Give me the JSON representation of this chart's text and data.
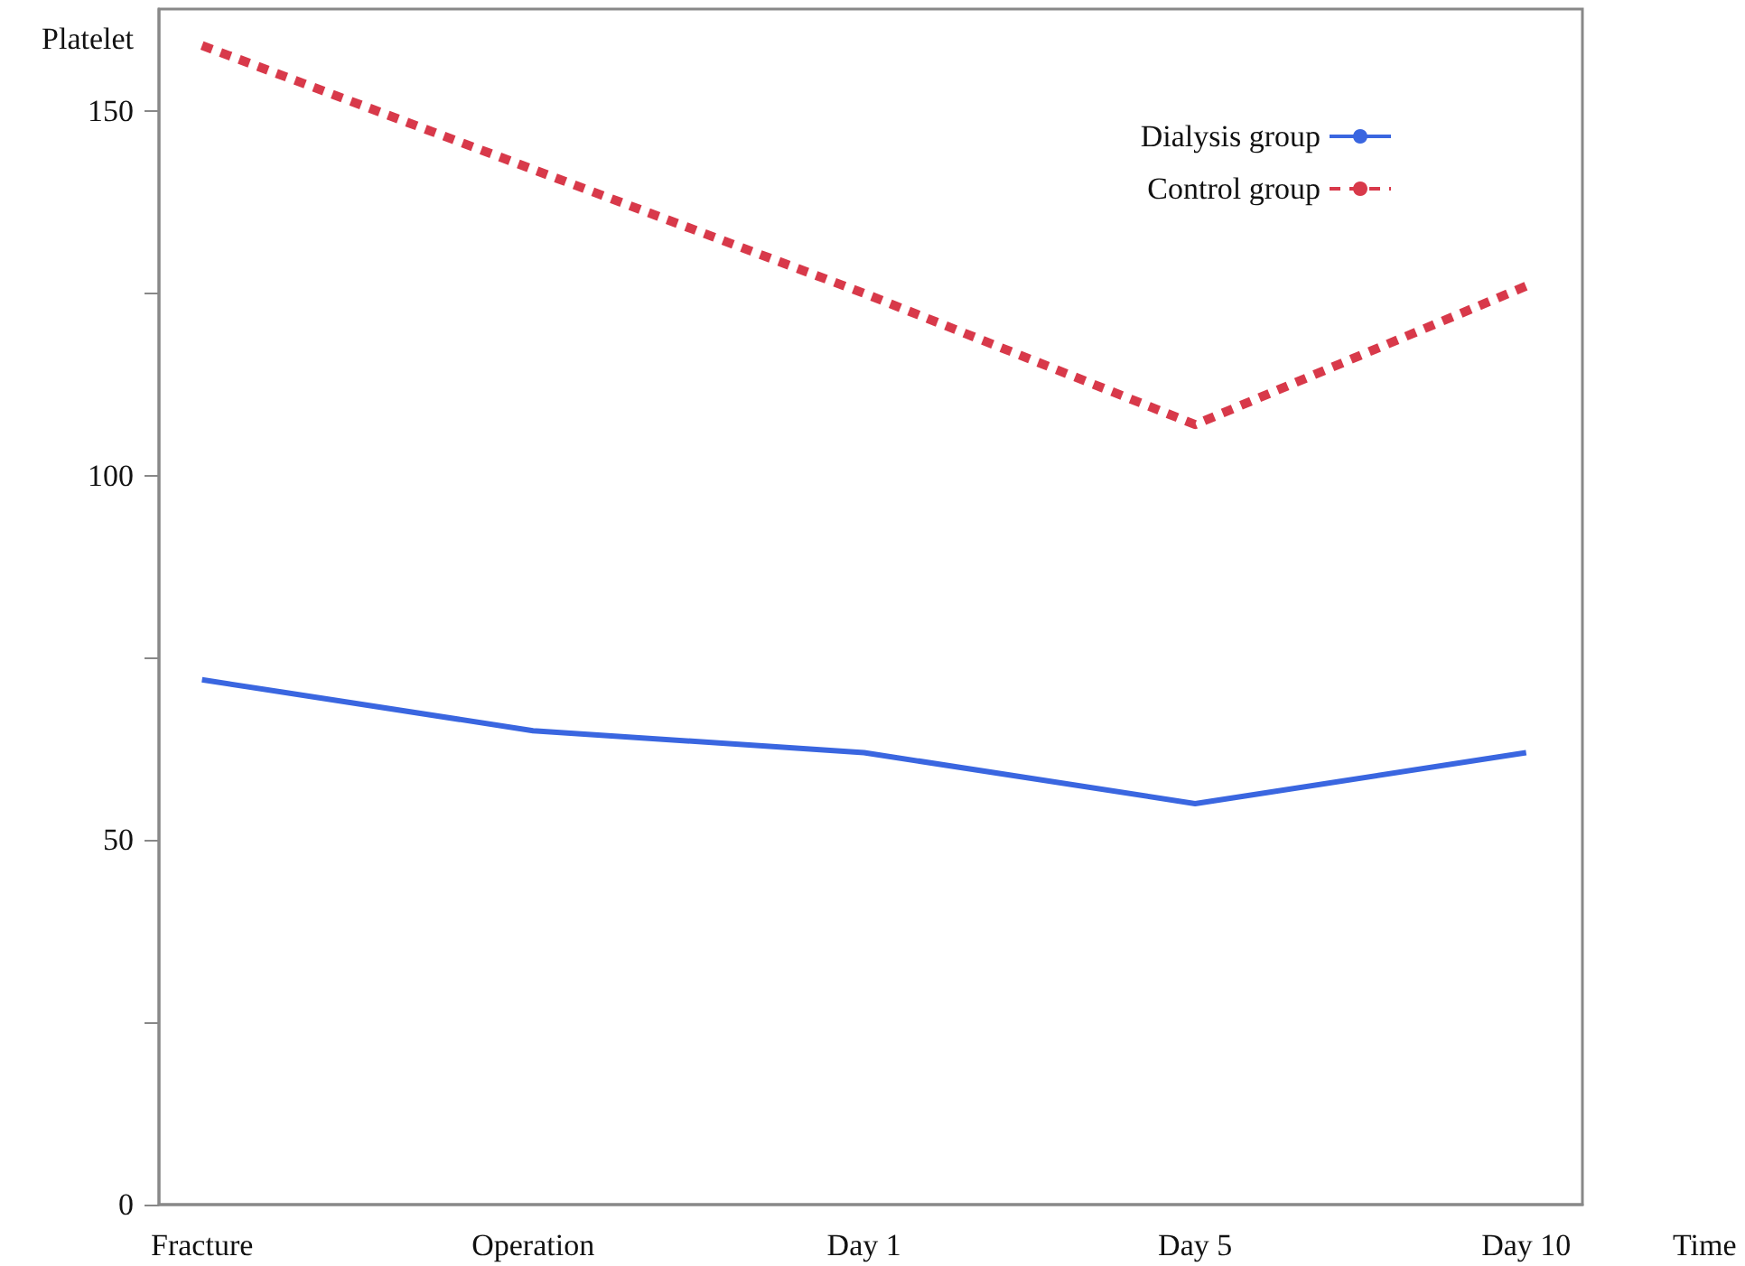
{
  "chart_data": {
    "type": "line",
    "xlabel": "Time",
    "ylabel": "Platelet",
    "categories": [
      "Fracture",
      "Operation",
      "Day 1",
      "Day 5",
      "Day 10"
    ],
    "series": [
      {
        "name": "Dialysis group",
        "color": "#3a66e0",
        "values": [
          72,
          65,
          62,
          55,
          62
        ],
        "line_style": "solid"
      },
      {
        "name": "Control group",
        "color": "#d8394a",
        "values": [
          159,
          142,
          125,
          107,
          126
        ],
        "line_style": "dashed"
      }
    ],
    "ylim": [
      0,
      164
    ],
    "yticks": [
      0,
      {
        "value": 25,
        "label": null
      },
      50,
      {
        "value": 75,
        "label": null
      },
      100,
      {
        "value": 125,
        "label": null
      },
      150
    ],
    "grid": false,
    "legend": "top right",
    "marker": "none"
  }
}
